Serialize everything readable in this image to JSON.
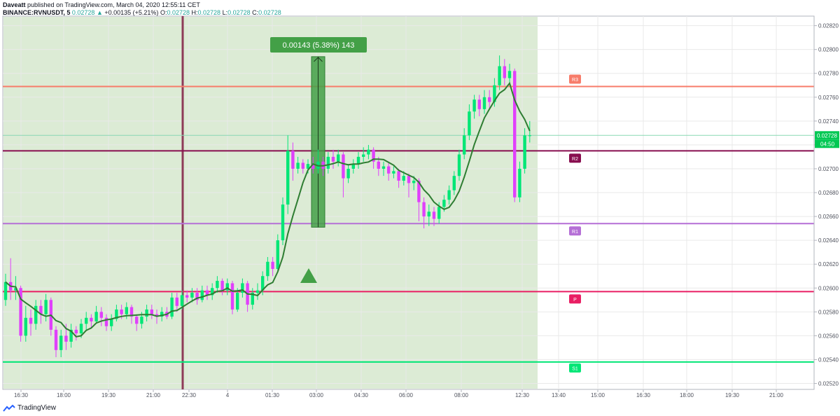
{
  "header": {
    "author": "Daveatt",
    "published_text": "published on TradingView.com, March 04, 2020 12:55:11 CET",
    "symbol": "BINANCE:RVNUSDT, 5",
    "price": "0.02728",
    "change": "+0.00135 (+5.21%)",
    "o_label": "O:",
    "o_value": "0.02728",
    "h_label": "H:",
    "h_value": "0.02728",
    "l_label": "L:",
    "l_value": "0.02728",
    "c_label": "C:",
    "c_value": "0.02728"
  },
  "footer": {
    "brand": "TradingView"
  },
  "chart_data": {
    "type": "candlestick",
    "ylim": [
      0.02515,
      0.02828
    ],
    "y_ticks": [
      "0.02820",
      "0.02800",
      "0.02780",
      "0.02760",
      "0.02740",
      "0.02720",
      "0.02700",
      "0.02680",
      "0.02660",
      "0.02640",
      "0.02620",
      "0.02600",
      "0.02580",
      "0.02560",
      "0.02540",
      "0.02520"
    ],
    "y_tick_values": [
      0.0282,
      0.028,
      0.0278,
      0.0276,
      0.0274,
      0.0272,
      0.027,
      0.0268,
      0.0266,
      0.0264,
      0.0262,
      0.026,
      0.0258,
      0.0256,
      0.0254,
      0.0252
    ],
    "x_ticks": [
      "16:30",
      "18:00",
      "19:30",
      "21:00",
      "22:30",
      "4",
      "01:30",
      "03:00",
      "04:30",
      "06:00",
      "08:00",
      "12:30",
      "13:40",
      "15:00",
      "16:30",
      "18:00",
      "19:30",
      "21:00"
    ],
    "last_price_label": "0.02728",
    "countdown_label": "04:50",
    "measure_label": "0.00143 (5.38%) 143",
    "measure_range": [
      0.02651,
      0.02794
    ],
    "pivot_levels": [
      {
        "name": "R3",
        "value": 0.02769,
        "color": "#f77c6a"
      },
      {
        "name": "R2",
        "value": 0.02715,
        "color": "#880e4f"
      },
      {
        "name": "R1",
        "value": 0.02654,
        "color": "#b56fd6"
      },
      {
        "name": "P",
        "value": 0.02597,
        "color": "#e91e63"
      },
      {
        "name": "S1",
        "value": 0.02538,
        "color": "#00e676"
      }
    ],
    "current_price": 0.02728,
    "colors": {
      "up": "#00e676",
      "down": "#e040fb",
      "ma": "#2e7d32",
      "bg_zone": "#dcebd5",
      "measure": "#43a047"
    },
    "candles": [
      [
        0.0259,
        0.02605,
        0.02585,
        0.02612
      ],
      [
        0.02605,
        0.02598,
        0.0259,
        0.02625
      ],
      [
        0.02598,
        0.026,
        0.0259,
        0.0261
      ],
      [
        0.026,
        0.0256,
        0.02555,
        0.02602
      ],
      [
        0.0256,
        0.02575,
        0.02555,
        0.02585
      ],
      [
        0.02575,
        0.0257,
        0.0256,
        0.02582
      ],
      [
        0.0257,
        0.02585,
        0.02565,
        0.0259
      ],
      [
        0.02585,
        0.02578,
        0.0257,
        0.0259
      ],
      [
        0.02578,
        0.0259,
        0.02572,
        0.02595
      ],
      [
        0.0259,
        0.02565,
        0.0256,
        0.02592
      ],
      [
        0.02565,
        0.02548,
        0.02542,
        0.02568
      ],
      [
        0.02548,
        0.0256,
        0.02542,
        0.02565
      ],
      [
        0.0256,
        0.02555,
        0.02548,
        0.0257
      ],
      [
        0.02555,
        0.02565,
        0.0255,
        0.0257
      ],
      [
        0.02565,
        0.02562,
        0.02556,
        0.02568
      ],
      [
        0.02562,
        0.0257,
        0.02558,
        0.02574
      ],
      [
        0.0257,
        0.02575,
        0.02565,
        0.0258
      ],
      [
        0.02575,
        0.02572,
        0.02566,
        0.02578
      ],
      [
        0.02572,
        0.0258,
        0.0257,
        0.02585
      ],
      [
        0.0258,
        0.02575,
        0.02568,
        0.02584
      ],
      [
        0.02575,
        0.02568,
        0.02564,
        0.02578
      ],
      [
        0.02568,
        0.02574,
        0.02564,
        0.02578
      ],
      [
        0.02574,
        0.02582,
        0.02572,
        0.02586
      ],
      [
        0.02582,
        0.02578,
        0.02574,
        0.02586
      ],
      [
        0.02578,
        0.02584,
        0.02574,
        0.02588
      ],
      [
        0.02584,
        0.02576,
        0.0257,
        0.02586
      ],
      [
        0.02576,
        0.0257,
        0.02564,
        0.02578
      ],
      [
        0.0257,
        0.02576,
        0.02566,
        0.0258
      ],
      [
        0.02576,
        0.02582,
        0.02572,
        0.02586
      ],
      [
        0.02582,
        0.02578,
        0.02574,
        0.02586
      ],
      [
        0.02578,
        0.02576,
        0.0257,
        0.02582
      ],
      [
        0.02576,
        0.0258,
        0.02572,
        0.02584
      ],
      [
        0.0258,
        0.02576,
        0.02574,
        0.02584
      ],
      [
        0.02576,
        0.02592,
        0.02574,
        0.02596
      ],
      [
        0.02592,
        0.02585,
        0.0258,
        0.02596
      ],
      [
        0.02585,
        0.02594,
        0.02582,
        0.02598
      ],
      [
        0.02594,
        0.02592,
        0.02588,
        0.02598
      ],
      [
        0.02592,
        0.02596,
        0.02588,
        0.026
      ],
      [
        0.02596,
        0.0259,
        0.02586,
        0.026
      ],
      [
        0.0259,
        0.02598,
        0.02588,
        0.02602
      ],
      [
        0.02598,
        0.02594,
        0.0259,
        0.02602
      ],
      [
        0.02594,
        0.026,
        0.0259,
        0.02604
      ],
      [
        0.026,
        0.02606,
        0.02596,
        0.0261
      ],
      [
        0.02606,
        0.02598,
        0.02594,
        0.02608
      ],
      [
        0.02598,
        0.02604,
        0.02594,
        0.02608
      ],
      [
        0.02604,
        0.02582,
        0.02578,
        0.02606
      ],
      [
        0.02582,
        0.02596,
        0.0258,
        0.026
      ],
      [
        0.02596,
        0.02604,
        0.02592,
        0.02608
      ],
      [
        0.02604,
        0.02586,
        0.0258,
        0.02606
      ],
      [
        0.02586,
        0.02596,
        0.02582,
        0.026
      ],
      [
        0.02596,
        0.02598,
        0.0259,
        0.02604
      ],
      [
        0.02598,
        0.0261,
        0.02594,
        0.02614
      ],
      [
        0.0261,
        0.02622,
        0.02606,
        0.02626
      ],
      [
        0.02622,
        0.02616,
        0.0261,
        0.02626
      ],
      [
        0.02616,
        0.0264,
        0.02614,
        0.02645
      ],
      [
        0.0264,
        0.0267,
        0.02636,
        0.02676
      ],
      [
        0.0267,
        0.02715,
        0.02662,
        0.02728
      ],
      [
        0.02715,
        0.027,
        0.0269,
        0.02722
      ],
      [
        0.027,
        0.02705,
        0.02696,
        0.0271
      ],
      [
        0.02705,
        0.027,
        0.02696,
        0.02708
      ],
      [
        0.027,
        0.02704,
        0.02696,
        0.02708
      ],
      [
        0.02704,
        0.027,
        0.02696,
        0.0271
      ],
      [
        0.027,
        0.02706,
        0.02696,
        0.02716
      ],
      [
        0.02706,
        0.027,
        0.02694,
        0.0271
      ],
      [
        0.027,
        0.0271,
        0.02696,
        0.02714
      ],
      [
        0.0271,
        0.02706,
        0.027,
        0.02716
      ],
      [
        0.02706,
        0.02712,
        0.02702,
        0.02716
      ],
      [
        0.02712,
        0.02692,
        0.02676,
        0.02714
      ],
      [
        0.02692,
        0.027,
        0.02688,
        0.02704
      ],
      [
        0.027,
        0.02704,
        0.02696,
        0.02708
      ],
      [
        0.02704,
        0.0271,
        0.027,
        0.02714
      ],
      [
        0.0271,
        0.02712,
        0.02706,
        0.02718
      ],
      [
        0.02712,
        0.02716,
        0.02708,
        0.0272
      ],
      [
        0.02716,
        0.02706,
        0.027,
        0.02718
      ],
      [
        0.02706,
        0.027,
        0.02694,
        0.0271
      ],
      [
        0.027,
        0.02702,
        0.02694,
        0.02706
      ],
      [
        0.02702,
        0.02696,
        0.0269,
        0.02706
      ],
      [
        0.02696,
        0.02698,
        0.02692,
        0.02702
      ],
      [
        0.02698,
        0.0269,
        0.02684,
        0.027
      ],
      [
        0.0269,
        0.02694,
        0.02686,
        0.02698
      ],
      [
        0.02694,
        0.02688,
        0.02676,
        0.02696
      ],
      [
        0.02688,
        0.0269,
        0.02682,
        0.02694
      ],
      [
        0.0269,
        0.02672,
        0.02656,
        0.02692
      ],
      [
        0.02672,
        0.0266,
        0.0265,
        0.02676
      ],
      [
        0.0266,
        0.02664,
        0.02652,
        0.0267
      ],
      [
        0.02664,
        0.02658,
        0.02652,
        0.02668
      ],
      [
        0.02658,
        0.02668,
        0.02654,
        0.02672
      ],
      [
        0.02668,
        0.02674,
        0.02664,
        0.02678
      ],
      [
        0.02674,
        0.02682,
        0.0267,
        0.02686
      ],
      [
        0.02682,
        0.02694,
        0.02678,
        0.02698
      ],
      [
        0.02694,
        0.02712,
        0.0269,
        0.02716
      ],
      [
        0.02712,
        0.02728,
        0.02708,
        0.02734
      ],
      [
        0.02728,
        0.02748,
        0.02724,
        0.02754
      ],
      [
        0.02748,
        0.02758,
        0.02742,
        0.02762
      ],
      [
        0.02758,
        0.0275,
        0.02744,
        0.02762
      ],
      [
        0.0275,
        0.0276,
        0.02746,
        0.02766
      ],
      [
        0.0276,
        0.02756,
        0.0275,
        0.02766
      ],
      [
        0.02756,
        0.0277,
        0.02752,
        0.02776
      ],
      [
        0.0277,
        0.02786,
        0.02766,
        0.02795
      ],
      [
        0.02786,
        0.02776,
        0.0277,
        0.02792
      ],
      [
        0.02776,
        0.02782,
        0.02772,
        0.02788
      ],
      [
        0.02782,
        0.02676,
        0.02672,
        0.02784
      ],
      [
        0.02676,
        0.027,
        0.02672,
        0.02706
      ],
      [
        0.027,
        0.02728,
        0.02696,
        0.02734
      ],
      [
        0.02728,
        0.02728,
        0.02722,
        0.0274
      ]
    ]
  }
}
